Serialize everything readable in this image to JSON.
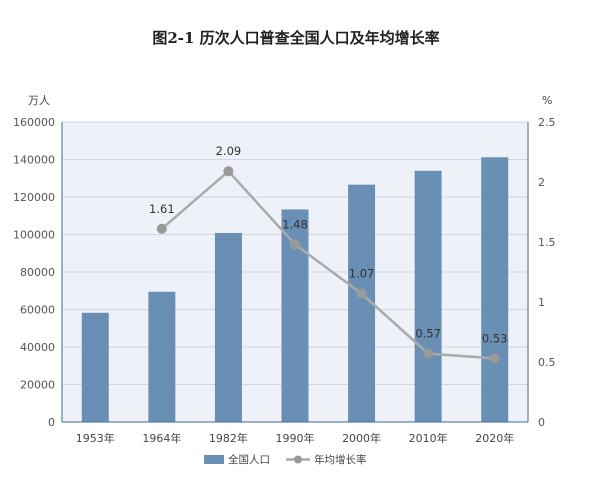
{
  "title": "图2-1   历次人口普查全国人口及年均增长率",
  "chart_data": {
    "type": "bar",
    "categories": [
      "1953年",
      "1964年",
      "1982年",
      "1990年",
      "2000年",
      "2010年",
      "2020年"
    ],
    "series": [
      {
        "name": "全国人口",
        "type": "bar",
        "axis": "left",
        "values": [
          58260,
          69458,
          100818,
          113368,
          126583,
          133972,
          141178
        ]
      },
      {
        "name": "年均增长率",
        "type": "line",
        "axis": "right",
        "values": [
          null,
          1.61,
          2.09,
          1.48,
          1.07,
          0.57,
          0.53
        ],
        "labels": [
          "",
          "1.61",
          "2.09",
          "1.48",
          "1.07",
          "0.57",
          "0.53"
        ]
      }
    ],
    "ylabel": "万人",
    "y2label": "%",
    "ylim": [
      0,
      160000
    ],
    "y2lim": [
      0,
      2.5
    ],
    "yticks": [
      0,
      20000,
      40000,
      60000,
      80000,
      100000,
      120000,
      140000,
      160000
    ],
    "y2ticks": [
      0,
      0.5,
      1,
      1.5,
      2,
      2.5
    ],
    "y2ticklabels": [
      "0",
      "0.5",
      "1",
      "1.5",
      "2",
      "2.5"
    ],
    "grid": true,
    "legend_position": "bottom",
    "colors": {
      "bar": "#6a8fb5",
      "line": "#aaaaaa",
      "marker": "#999999",
      "plot_bg": "#eef1f8",
      "axis": "#3f6a9a"
    }
  }
}
